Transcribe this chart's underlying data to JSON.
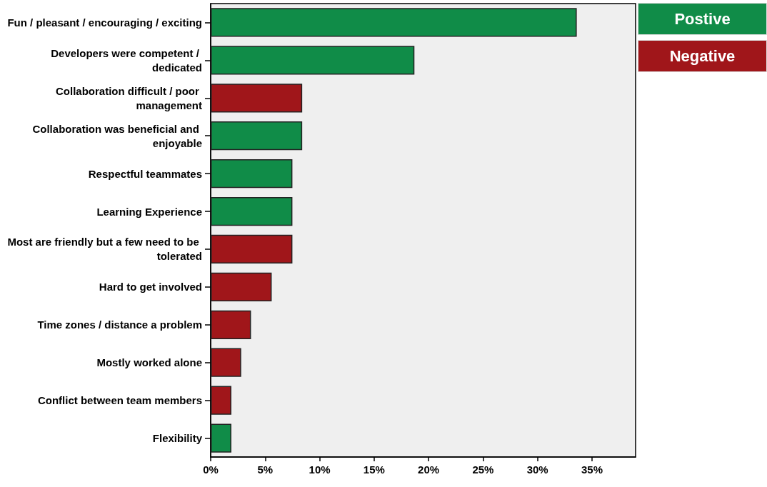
{
  "chart_data": {
    "type": "bar",
    "orientation": "horizontal",
    "categories": [
      "Fun / pleasant / encouraging / exciting",
      "Developers were competent / dedicated",
      "Collaboration difficult / poor management",
      "Collaboration was beneficial and enjoyable",
      "Respectful teammates",
      "Learning Experience",
      "Most are friendly but a few need to be tolerated",
      "Hard to get involved",
      "Time zones / distance a problem",
      "Mostly worked alone",
      "Conflict between team members",
      "Flexibility"
    ],
    "series": [
      {
        "name": "Postive",
        "color": "#108c48",
        "values": [
          33.6,
          18.7,
          null,
          8.4,
          7.5,
          7.5,
          null,
          null,
          null,
          null,
          null,
          1.9
        ]
      },
      {
        "name": "Negative",
        "color": "#a0161a",
        "values": [
          null,
          null,
          8.4,
          null,
          null,
          null,
          7.5,
          5.6,
          3.7,
          2.8,
          1.9,
          null
        ]
      }
    ],
    "xlim": [
      0,
      39
    ],
    "xticks": [
      {
        "value": 0,
        "label": "0%"
      },
      {
        "value": 5,
        "label": "5%"
      },
      {
        "value": 10,
        "label": "10%"
      },
      {
        "value": 15,
        "label": "15%"
      },
      {
        "value": 20,
        "label": "20%"
      },
      {
        "value": 25,
        "label": "25%"
      },
      {
        "value": 30,
        "label": "30%"
      },
      {
        "value": 35,
        "label": "35%"
      }
    ],
    "legend": "top right"
  }
}
